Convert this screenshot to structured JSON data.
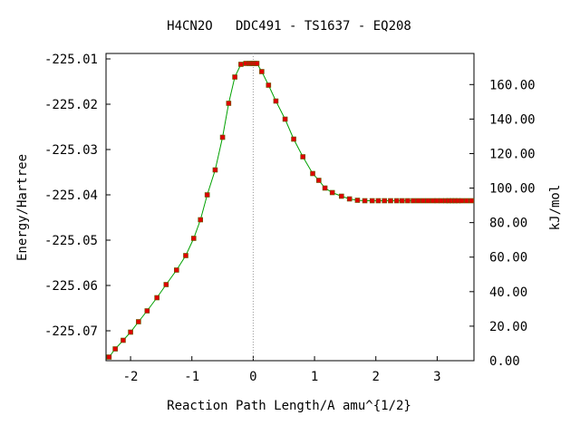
{
  "chart_data": {
    "type": "line",
    "title": "H4CN2O   DDC491 - TS1637 - EQ208",
    "xlabel": "Reaction Path Length/A amu^{1/2}",
    "ylabel": "Energy/Hartree",
    "y2label": "kJ/mol",
    "xlim": [
      -2.4,
      3.6
    ],
    "ylim": [
      -225.0766,
      -225.0088
    ],
    "x_ticks": [
      -2,
      -1,
      0,
      1,
      2,
      3
    ],
    "x_tick_labels": [
      "-2",
      "-1",
      "0",
      "1",
      "2",
      "3"
    ],
    "y_ticks": [
      -225.01,
      -225.02,
      -225.03,
      -225.04,
      -225.05,
      -225.06,
      -225.07
    ],
    "y_tick_labels": [
      "-225.01",
      "-225.02",
      "-225.03",
      "-225.04",
      "-225.05",
      "-225.06",
      "-225.07"
    ],
    "y2_ticks": [
      0,
      20,
      40,
      60,
      80,
      100,
      120,
      140,
      160
    ],
    "y2_tick_labels": [
      "0.00",
      "20.00",
      "40.00",
      "60.00",
      "80.00",
      "100.00",
      "120.00",
      "140.00",
      "160.00"
    ],
    "y2_zero_energy": -225.0766,
    "kj_per_hartree": 2625.5,
    "transition_state_x": 0,
    "grid": false,
    "colors": {
      "line": "#00a000",
      "marker": "#e00000",
      "marker_edge": "#606000",
      "ts_line": "#999999"
    },
    "series": [
      {
        "x": [
          -2.35,
          -2.25,
          -2.12,
          -2.0,
          -1.87,
          -1.73,
          -1.57,
          -1.42,
          -1.25,
          -1.1,
          -0.97,
          -0.86,
          -0.75,
          -0.62,
          -0.5,
          -0.4,
          -0.3,
          -0.2,
          -0.12,
          -0.06,
          -0.03,
          0.0,
          0.03,
          0.06,
          0.14,
          0.25,
          0.37,
          0.52,
          0.66,
          0.81,
          0.97,
          1.07,
          1.17,
          1.29,
          1.44,
          1.57,
          1.7,
          1.82,
          1.94,
          2.04,
          2.14,
          2.24,
          2.34,
          2.43,
          2.52,
          2.61,
          2.69,
          2.77,
          2.85,
          2.93,
          3.0,
          3.07,
          3.14,
          3.19,
          3.24,
          3.29,
          3.34,
          3.4,
          3.48,
          3.56
        ],
        "values": [
          -225.0758,
          -225.074,
          -225.0721,
          -225.0703,
          -225.068,
          -225.0656,
          -225.0627,
          -225.0598,
          -225.0566,
          -225.0534,
          -225.0496,
          -225.0455,
          -225.04,
          -225.0345,
          -225.0273,
          -225.0198,
          -225.014,
          -225.0112,
          -225.011,
          -225.011,
          -225.011,
          -225.011,
          -225.011,
          -225.011,
          -225.0128,
          -225.0158,
          -225.0193,
          -225.0233,
          -225.0277,
          -225.0316,
          -225.0353,
          -225.0368,
          -225.0385,
          -225.0395,
          -225.0403,
          -225.0409,
          -225.0412,
          -225.0413,
          -225.0413,
          -225.0413,
          -225.0413,
          -225.0413,
          -225.0413,
          -225.0413,
          -225.0413,
          -225.0413,
          -225.0413,
          -225.0413,
          -225.0413,
          -225.0413,
          -225.0413,
          -225.0413,
          -225.0413,
          -225.0413,
          -225.0413,
          -225.0413,
          -225.0413,
          -225.0413,
          -225.0413,
          -225.0413
        ]
      }
    ]
  }
}
